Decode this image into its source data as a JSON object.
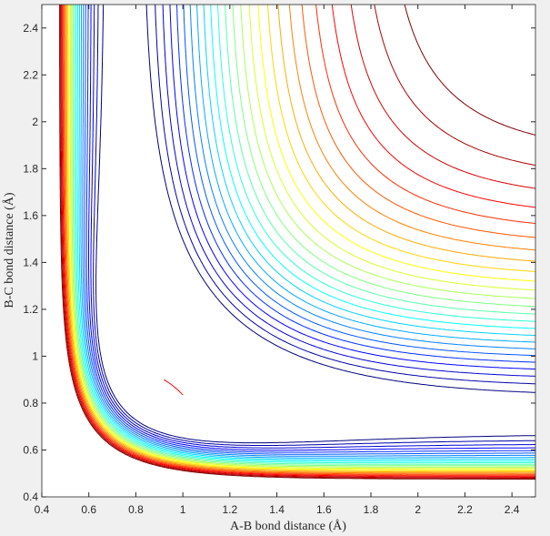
{
  "chart_data": {
    "type": "contour",
    "xlabel": "A-B bond distance (Å)",
    "ylabel": "B-C bond distance (Å)",
    "xlim": [
      0.4,
      2.5
    ],
    "ylim": [
      0.4,
      2.5
    ],
    "xticks": [
      0.4,
      0.6,
      0.8,
      1,
      1.2,
      1.4,
      1.6,
      1.8,
      2,
      2.2,
      2.4
    ],
    "yticks": [
      0.4,
      0.6,
      0.8,
      1,
      1.2,
      1.4,
      1.6,
      1.8,
      2,
      2.2,
      2.4
    ],
    "colormap": "jet",
    "levels": [
      -0.96,
      -0.925,
      -0.89,
      -0.855,
      -0.82,
      -0.785,
      -0.75,
      -0.715,
      -0.68,
      -0.645,
      -0.61,
      -0.575,
      -0.54,
      -0.505,
      -0.47,
      -0.435,
      -0.4,
      -0.365,
      -0.33,
      -0.295,
      -0.26,
      -0.225,
      -0.19,
      -0.155,
      -0.12
    ],
    "trajectory": {
      "color": "#ff0000",
      "x": [
        0.92,
        0.95,
        0.98,
        1.0
      ],
      "y": [
        0.9,
        0.88,
        0.855,
        0.835
      ]
    }
  }
}
